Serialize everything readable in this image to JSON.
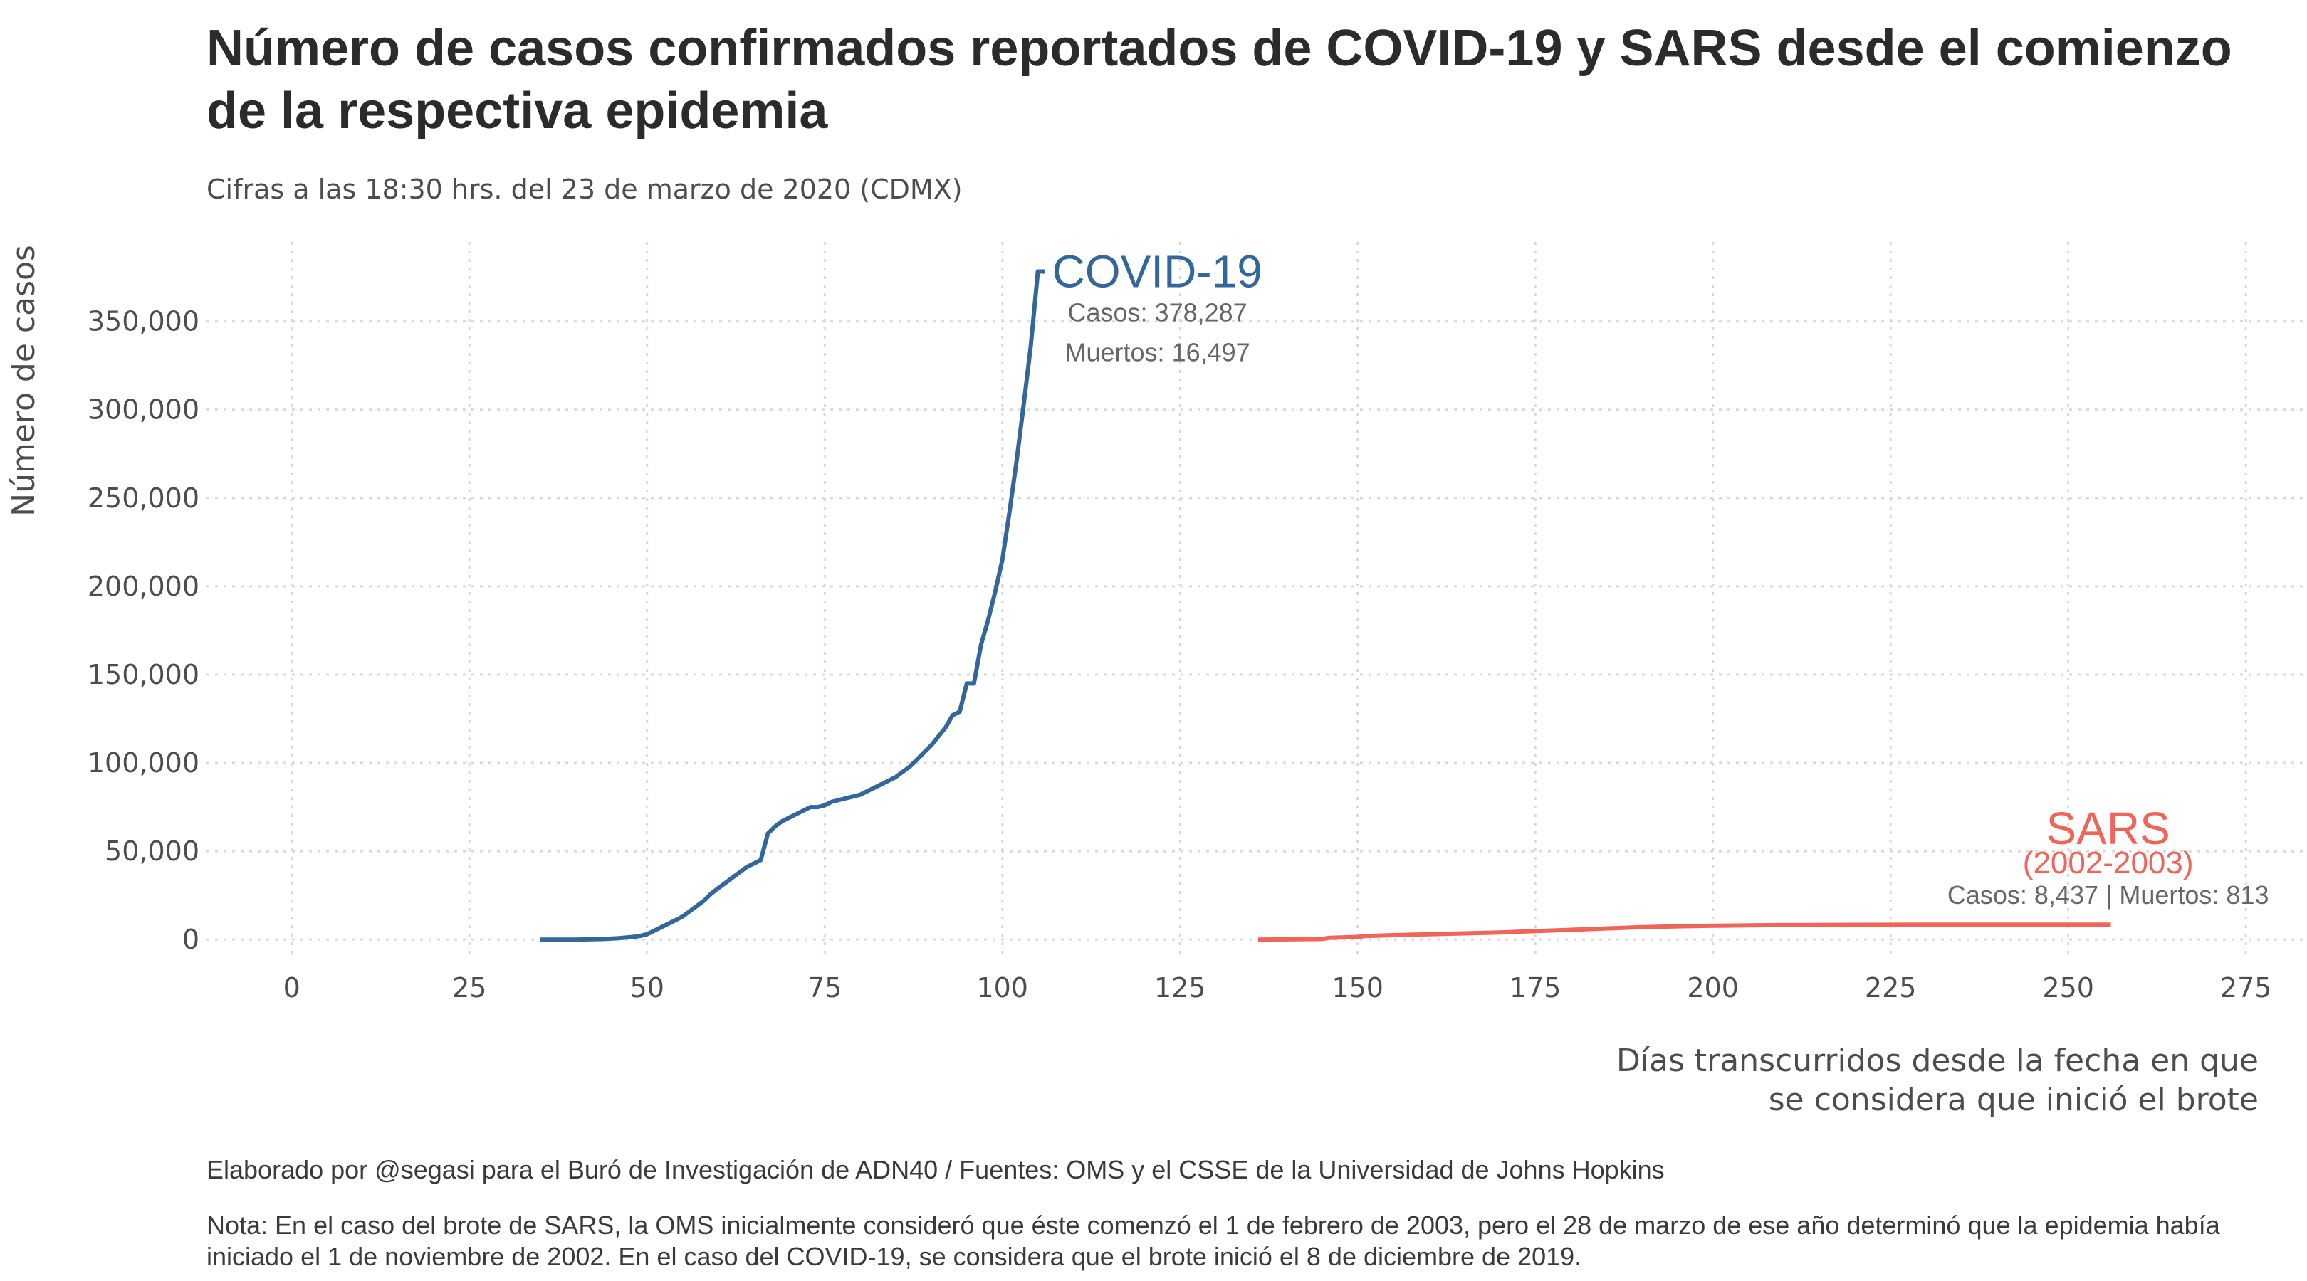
{
  "title": "Número de casos confirmados reportados de COVID-19 y SARS desde el comienzo de la respectiva epidemia",
  "subtitle": "Cifras a las 18:30 hrs. del 23 de marzo de 2020 (CDMX)",
  "caption_source": "Elaborado por @segasi para el Buró de Investigación de ADN40 / Fuentes: OMS y el CSSE de la Universidad de Johns Hopkins",
  "caption_note": "Nota: En el caso del brote de SARS, la OMS inicialmente consideró que éste comenzó el 1 de febrero de 2003, pero el 28 de marzo de ese año determinó que la epidemia había iniciado el 1 de noviembre de 2002. En el caso del COVID-19, se considera que el brote inició el 8 de diciembre de 2019.",
  "chart_data": {
    "type": "line",
    "ylabel": "Número de casos",
    "xlabel_lines": [
      "Días transcurridos desde la fecha en que",
      "se considera que inició el brote"
    ],
    "xlim": [
      -12,
      283
    ],
    "ylim": [
      -10000,
      395000
    ],
    "xticks": [
      0,
      25,
      50,
      75,
      100,
      125,
      150,
      175,
      200,
      225,
      250,
      275
    ],
    "yticks": [
      0,
      50000,
      100000,
      150000,
      200000,
      250000,
      300000,
      350000
    ],
    "ytick_labels": [
      "0",
      "50,000",
      "100,000",
      "150,000",
      "200,000",
      "250,000",
      "300,000",
      "350,000"
    ],
    "grid": true,
    "series": [
      {
        "name": "COVID-19",
        "color": "#336699",
        "annotation_cases": "Casos: 378,287",
        "annotation_deaths": "Muertos: 16,497",
        "x": [
          35,
          40,
          44,
          46,
          48,
          49,
          50,
          51,
          52,
          53,
          54,
          55,
          56,
          57,
          58,
          59,
          60,
          61,
          62,
          63,
          64,
          65,
          66,
          67,
          68,
          69,
          70,
          71,
          72,
          73,
          74,
          75,
          76,
          77,
          78,
          79,
          80,
          81,
          82,
          83,
          84,
          85,
          86,
          87,
          88,
          89,
          90,
          91,
          92,
          93,
          94,
          95,
          96,
          97,
          98,
          99,
          100,
          101,
          102,
          103,
          104,
          105,
          106
        ],
        "y": [
          0,
          0,
          300,
          800,
          1500,
          2000,
          3000,
          5000,
          7000,
          9000,
          11000,
          13000,
          16000,
          19000,
          22000,
          26000,
          29000,
          32000,
          35000,
          38000,
          41000,
          43000,
          45000,
          60000,
          64000,
          67000,
          69000,
          71000,
          73000,
          75000,
          75000,
          76000,
          78000,
          79000,
          80000,
          81000,
          82000,
          84000,
          86000,
          88000,
          90000,
          92000,
          95000,
          98000,
          102000,
          106000,
          110000,
          115000,
          120000,
          127000,
          129000,
          145000,
          145000,
          167000,
          181000,
          197000,
          215000,
          242000,
          271000,
          303000,
          336000,
          378287,
          378287
        ]
      },
      {
        "name": "SARS",
        "label_years": "(2002-2003)",
        "color": "#f0655a",
        "annotation": "Casos: 8,437 | Muertos: 813",
        "x": [
          136,
          140,
          145,
          146,
          150,
          151,
          155,
          160,
          165,
          170,
          175,
          180,
          185,
          190,
          195,
          200,
          210,
          220,
          230,
          240,
          250,
          256
        ],
        "y": [
          0,
          100,
          300,
          1000,
          1500,
          2000,
          2500,
          3000,
          3500,
          4000,
          4800,
          5500,
          6300,
          7000,
          7500,
          7800,
          8200,
          8350,
          8400,
          8420,
          8437,
          8437
        ]
      }
    ]
  }
}
